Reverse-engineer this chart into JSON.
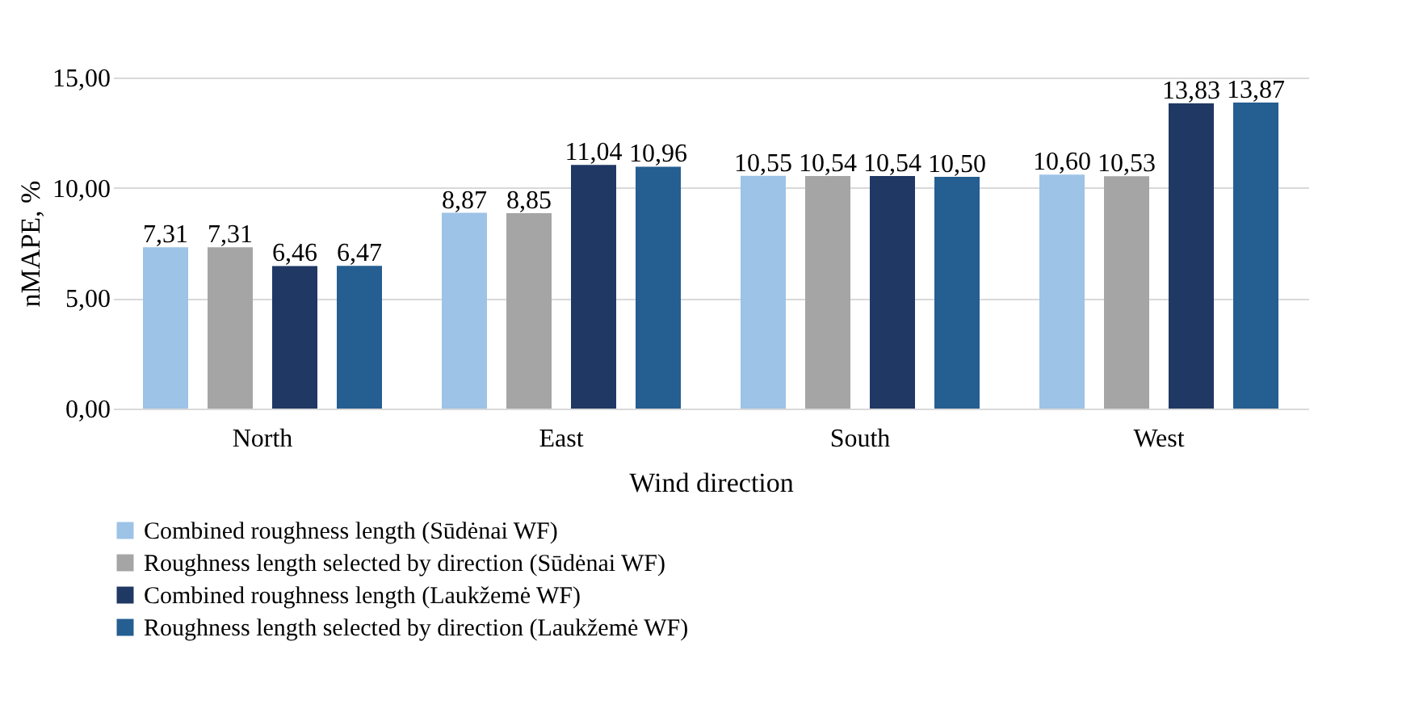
{
  "chart_data": {
    "type": "bar",
    "xlabel": "Wind direction",
    "ylabel": "nMAPE, %",
    "categories": [
      "North",
      "East",
      "South",
      "West"
    ],
    "series": [
      {
        "name": "Combined roughness length (Sūdėnai WF)",
        "color": "#9dc3e6",
        "values": [
          7.31,
          8.87,
          10.55,
          10.6
        ],
        "value_labels": [
          "7,31",
          "8,87",
          "10,55",
          "10,60"
        ]
      },
      {
        "name": "Roughness length selected by direction (Sūdėnai WF)",
        "color": "#a5a5a5",
        "values": [
          7.31,
          8.85,
          10.54,
          10.53
        ],
        "value_labels": [
          "7,31",
          "8,85",
          "10,54",
          "10,53"
        ]
      },
      {
        "name": "Combined roughness length (Laukžemė WF)",
        "color": "#203864",
        "values": [
          6.46,
          11.04,
          10.54,
          13.83
        ],
        "value_labels": [
          "6,46",
          "11,04",
          "10,54",
          "13,83"
        ]
      },
      {
        "name": "Roughness length selected by direction (Laukžemė WF)",
        "color": "#255e91",
        "values": [
          6.47,
          10.96,
          10.5,
          13.87
        ],
        "value_labels": [
          "6,47",
          "10,96",
          "10,50",
          "13,87"
        ]
      }
    ],
    "ylim": [
      0,
      15
    ],
    "yticks": [
      {
        "value": 0,
        "label": "0,00"
      },
      {
        "value": 5,
        "label": "5,00"
      },
      {
        "value": 10,
        "label": "10,00"
      },
      {
        "value": 15,
        "label": "15,00"
      }
    ],
    "grid": "y",
    "legend": "bottom"
  }
}
